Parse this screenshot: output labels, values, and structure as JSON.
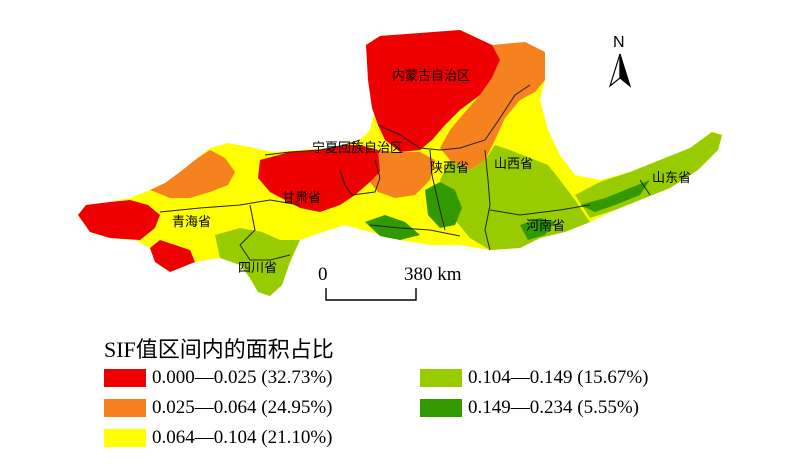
{
  "map": {
    "provinces": [
      {
        "name": "内蒙古自治区"
      },
      {
        "name": "宁夏回族自治区"
      },
      {
        "name": "陕西省"
      },
      {
        "name": "山西省"
      },
      {
        "name": "甘肃省"
      },
      {
        "name": "青海省"
      },
      {
        "name": "山东省"
      },
      {
        "name": "河南省"
      },
      {
        "name": "四川省"
      }
    ],
    "north_label": "N",
    "scale": {
      "start": "0",
      "end": "380 km"
    }
  },
  "legend": {
    "title": "SIF值区间内的面积占比",
    "items": [
      {
        "range": "0.000—0.025 (32.73%)",
        "color": "#ee0000"
      },
      {
        "range": "0.025—0.064 (24.95%)",
        "color": "#f5821f"
      },
      {
        "range": "0.064—0.104 (21.10%)",
        "color": "#ffff00"
      },
      {
        "range": "0.104—0.149 (15.67%)",
        "color": "#99cc00"
      },
      {
        "range": "0.149—0.234 (5.55%)",
        "color": "#339900"
      }
    ]
  }
}
